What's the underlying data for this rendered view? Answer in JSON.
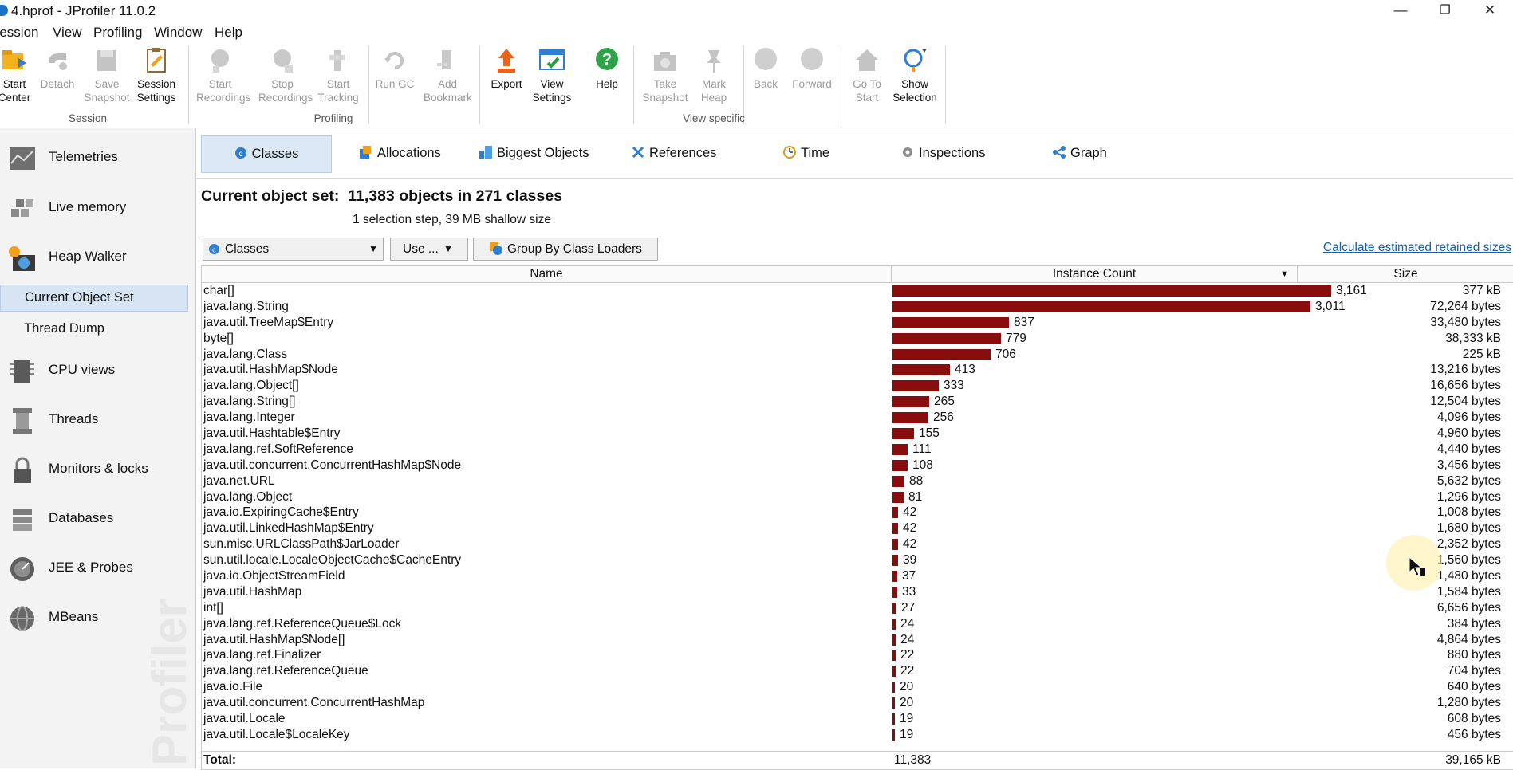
{
  "window": {
    "title": "4.hprof - JProfiler 11.0.2",
    "minimize": "—",
    "maximize": "❐",
    "close": "✕"
  },
  "menu": [
    {
      "label": "Session",
      "name": "menu-session"
    },
    {
      "label": "View",
      "name": "menu-view"
    },
    {
      "label": "Profiling",
      "name": "menu-profiling"
    },
    {
      "label": "Window",
      "name": "menu-window"
    },
    {
      "label": "Help",
      "name": "menu-help"
    }
  ],
  "toolbar": {
    "start_center": [
      "Start",
      "Center"
    ],
    "detach": [
      "Detach",
      ""
    ],
    "save_snapshot": [
      "Save",
      "Snapshot"
    ],
    "session_settings": [
      "Session",
      "Settings"
    ],
    "start_recordings": [
      "Start",
      "Recordings"
    ],
    "stop_recordings": [
      "Stop",
      "Recordings"
    ],
    "start_tracking": [
      "Start",
      "Tracking"
    ],
    "run_gc": [
      "Run GC",
      ""
    ],
    "add_bookmark": [
      "Add",
      "Bookmark"
    ],
    "export": [
      "Export",
      ""
    ],
    "view_settings": [
      "View",
      "Settings"
    ],
    "help": [
      "Help",
      ""
    ],
    "take_snapshot": [
      "Take",
      "Snapshot"
    ],
    "mark_heap": [
      "Mark",
      "Heap"
    ],
    "back": [
      "Back",
      ""
    ],
    "forward": [
      "Forward",
      ""
    ],
    "go_to_start": [
      "Go To",
      "Start"
    ],
    "show_selection": [
      "Show",
      "Selection"
    ],
    "groups": {
      "session": "Session",
      "profiling": "Profiling",
      "view_specific": "View specific"
    }
  },
  "sidebar": {
    "telemetries": "Telemetries",
    "live_memory": "Live memory",
    "heap_walker": "Heap Walker",
    "current_object_set": "Current Object Set",
    "thread_dump": "Thread Dump",
    "cpu_views": "CPU views",
    "threads": "Threads",
    "monitors_locks": "Monitors & locks",
    "databases": "Databases",
    "jee_probes": "JEE & Probes",
    "mbeans": "MBeans",
    "watermark": "Profiler"
  },
  "tabs": {
    "classes": "Classes",
    "allocations": "Allocations",
    "biggest_objects": "Biggest Objects",
    "references": "References",
    "time": "Time",
    "inspections": "Inspections",
    "graph": "Graph"
  },
  "header": {
    "label": "Current object set:",
    "summary": "11,383 objects in 271 classes",
    "subline": "1 selection step, 39 MB shallow size"
  },
  "controls": {
    "view_select": "Classes",
    "use_button": "Use ...",
    "group_button": "Group By Class Loaders",
    "calc_link": "Calculate estimated retained sizes"
  },
  "table": {
    "columns": {
      "name": "Name",
      "instance_count": "Instance Count",
      "size": "Size"
    },
    "max_count": 3161,
    "rows": [
      {
        "name": "char[]",
        "count": 3161,
        "count_label": "3,161",
        "size": "377 kB"
      },
      {
        "name": "java.lang.String",
        "count": 3011,
        "count_label": "3,011",
        "size": "72,264 bytes"
      },
      {
        "name": "java.util.TreeMap$Entry",
        "count": 837,
        "count_label": "837",
        "size": "33,480 bytes"
      },
      {
        "name": "byte[]",
        "count": 779,
        "count_label": "779",
        "size": "38,333 kB"
      },
      {
        "name": "java.lang.Class",
        "count": 706,
        "count_label": "706",
        "size": "225 kB"
      },
      {
        "name": "java.util.HashMap$Node",
        "count": 413,
        "count_label": "413",
        "size": "13,216 bytes"
      },
      {
        "name": "java.lang.Object[]",
        "count": 333,
        "count_label": "333",
        "size": "16,656 bytes"
      },
      {
        "name": "java.lang.String[]",
        "count": 265,
        "count_label": "265",
        "size": "12,504 bytes"
      },
      {
        "name": "java.lang.Integer",
        "count": 256,
        "count_label": "256",
        "size": "4,096 bytes"
      },
      {
        "name": "java.util.Hashtable$Entry",
        "count": 155,
        "count_label": "155",
        "size": "4,960 bytes"
      },
      {
        "name": "java.lang.ref.SoftReference",
        "count": 111,
        "count_label": "111",
        "size": "4,440 bytes"
      },
      {
        "name": "java.util.concurrent.ConcurrentHashMap$Node",
        "count": 108,
        "count_label": "108",
        "size": "3,456 bytes"
      },
      {
        "name": "java.net.URL",
        "count": 88,
        "count_label": "88",
        "size": "5,632 bytes"
      },
      {
        "name": "java.lang.Object",
        "count": 81,
        "count_label": "81",
        "size": "1,296 bytes"
      },
      {
        "name": "java.io.ExpiringCache$Entry",
        "count": 42,
        "count_label": "42",
        "size": "1,008 bytes"
      },
      {
        "name": "java.util.LinkedHashMap$Entry",
        "count": 42,
        "count_label": "42",
        "size": "1,680 bytes"
      },
      {
        "name": "sun.misc.URLClassPath$JarLoader",
        "count": 42,
        "count_label": "42",
        "size": "2,352 bytes"
      },
      {
        "name": "sun.util.locale.LocaleObjectCache$CacheEntry",
        "count": 39,
        "count_label": "39",
        "size": "1,560 bytes"
      },
      {
        "name": "java.io.ObjectStreamField",
        "count": 37,
        "count_label": "37",
        "size": "1,480 bytes"
      },
      {
        "name": "java.util.HashMap",
        "count": 33,
        "count_label": "33",
        "size": "1,584 bytes"
      },
      {
        "name": "int[]",
        "count": 27,
        "count_label": "27",
        "size": "6,656 bytes"
      },
      {
        "name": "java.lang.ref.ReferenceQueue$Lock",
        "count": 24,
        "count_label": "24",
        "size": "384 bytes"
      },
      {
        "name": "java.util.HashMap$Node[]",
        "count": 24,
        "count_label": "24",
        "size": "4,864 bytes"
      },
      {
        "name": "java.lang.ref.Finalizer",
        "count": 22,
        "count_label": "22",
        "size": "880 bytes"
      },
      {
        "name": "java.lang.ref.ReferenceQueue",
        "count": 22,
        "count_label": "22",
        "size": "704 bytes"
      },
      {
        "name": "java.io.File",
        "count": 20,
        "count_label": "20",
        "size": "640 bytes"
      },
      {
        "name": "java.util.concurrent.ConcurrentHashMap",
        "count": 20,
        "count_label": "20",
        "size": "1,280 bytes"
      },
      {
        "name": "java.util.Locale",
        "count": 19,
        "count_label": "19",
        "size": "608 bytes"
      },
      {
        "name": "java.util.Locale$LocaleKey",
        "count": 19,
        "count_label": "19",
        "size": "456 bytes"
      }
    ],
    "total": {
      "label": "Total:",
      "count": "11,383",
      "size": "39,165 kB"
    }
  },
  "colors": {
    "bar": "#8a0d0d",
    "selection": "#d6e4f4",
    "link": "#1a5ea8"
  }
}
